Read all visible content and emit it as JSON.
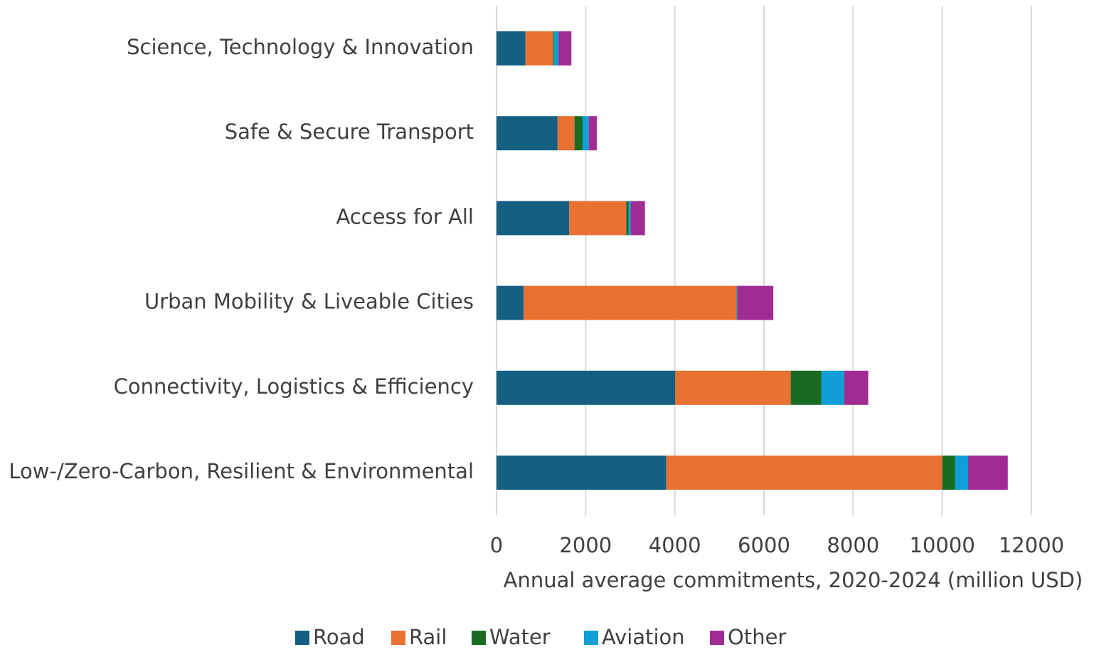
{
  "chart_data": {
    "type": "stacked_barh",
    "x_label": "Annual average commitments, 2020-2024 (million USD)",
    "categories": [
      "Science, Technology & Innovation",
      "Safe & Secure Transport",
      "Access for All",
      "Urban Mobility & Liveable Cities",
      "Connectivity, Logistics & Efficiency",
      "Low-/Zero-Carbon, Resilient & Environmental"
    ],
    "series": [
      {
        "name": "Road",
        "color": "#155f82",
        "values": [
          650,
          1370,
          1630,
          610,
          4010,
          3810
        ]
      },
      {
        "name": "Rail",
        "color": "#e97132",
        "values": [
          620,
          380,
          1280,
          4770,
          2590,
          6190
        ]
      },
      {
        "name": "Water",
        "color": "#196b24",
        "values": [
          20,
          180,
          50,
          10,
          690,
          290
        ]
      },
      {
        "name": "Aviation",
        "color": "#0f9ed5",
        "values": [
          100,
          140,
          50,
          10,
          510,
          290
        ]
      },
      {
        "name": "Other",
        "color": "#a02b93",
        "values": [
          290,
          180,
          320,
          810,
          540,
          890
        ]
      }
    ],
    "xlim": [
      0,
      12000
    ],
    "xticks": [
      0,
      2000,
      4000,
      6000,
      8000,
      10000,
      12000
    ],
    "grid": true,
    "legend": "bottom"
  }
}
